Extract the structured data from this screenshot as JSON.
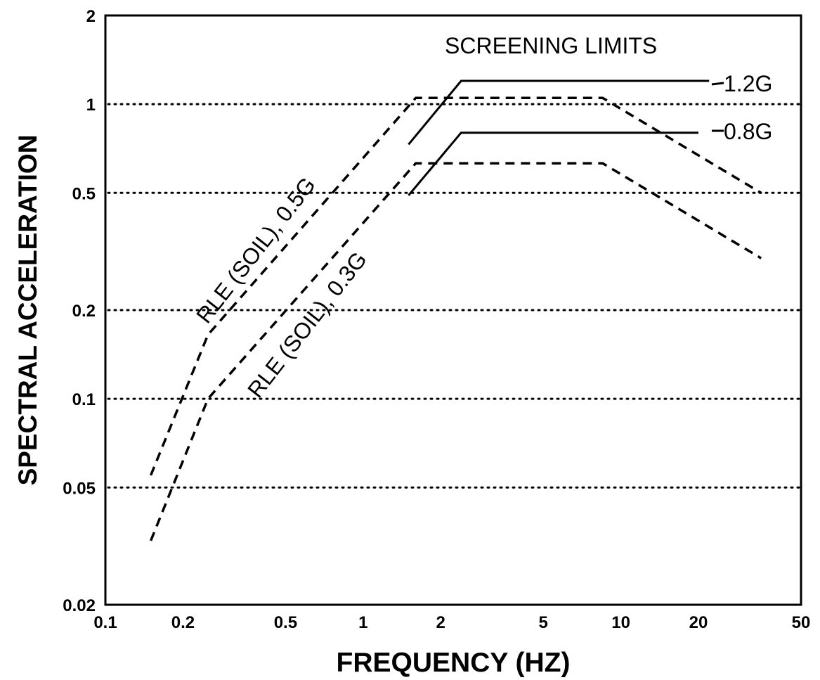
{
  "chart_data": {
    "type": "line",
    "xlabel": "FREQUENCY (HZ)",
    "ylabel": "SPECTRAL ACCELERATION",
    "x_scale": "log",
    "y_scale": "log",
    "xlim": [
      0.1,
      50
    ],
    "ylim": [
      0.02,
      2
    ],
    "grid": "horizontal dotted lines at 0.05, 0.1, 0.2, 0.5, 1",
    "x_ticks": [
      "0.1",
      "0.2",
      "0.5",
      "1",
      "2",
      "5",
      "10",
      "20",
      "50"
    ],
    "y_ticks": [
      "0.02",
      "0.05",
      "0.1",
      "0.2",
      "0.5",
      "1",
      "2"
    ],
    "annotations": {
      "screening_title": "SCREENING LIMITS",
      "label_12": "1.2G",
      "label_08": "0.8G",
      "label_rle05": "RLE (SOIL), 0.5G",
      "label_rle03": "RLE (SOIL), 0.3G"
    },
    "series": [
      {
        "name": "RLE (SOIL), 0.5G",
        "style": "dashed",
        "x": [
          0.15,
          0.25,
          1.6,
          8.5,
          35
        ],
        "y": [
          0.055,
          0.165,
          1.05,
          1.05,
          0.5
        ]
      },
      {
        "name": "RLE (SOIL), 0.3G",
        "style": "dashed",
        "x": [
          0.15,
          0.25,
          1.6,
          8.5,
          35
        ],
        "y": [
          0.033,
          0.1,
          0.63,
          0.63,
          0.3
        ]
      },
      {
        "name": "1.2G",
        "style": "solid",
        "x": [
          1.5,
          2.4,
          22
        ],
        "y": [
          0.73,
          1.2,
          1.2
        ]
      },
      {
        "name": "0.8G",
        "style": "solid",
        "x": [
          1.5,
          2.4,
          20
        ],
        "y": [
          0.49,
          0.8,
          0.8
        ]
      }
    ]
  }
}
